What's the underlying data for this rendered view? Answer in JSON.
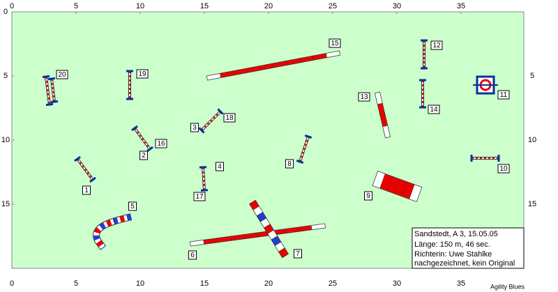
{
  "axes": {
    "x_ticks": [
      0,
      5,
      10,
      15,
      20,
      25,
      30,
      35
    ],
    "y_ticks": [
      0,
      5,
      10,
      15
    ]
  },
  "obstacles": [
    "1",
    "2",
    "3",
    "4",
    "5",
    "6",
    "7",
    "8",
    "9",
    "10",
    "11",
    "12",
    "13",
    "14",
    "15",
    "16",
    "17",
    "18",
    "19",
    "20"
  ],
  "info": {
    "lines": [
      "Sandstedt, A 3, 15.05.05",
      "Länge: 150 m, 46 sec.",
      "Richterin: Uwe Stahlke",
      "nachgezeichnet, kein Original"
    ]
  },
  "footer": "Agility Blues"
}
